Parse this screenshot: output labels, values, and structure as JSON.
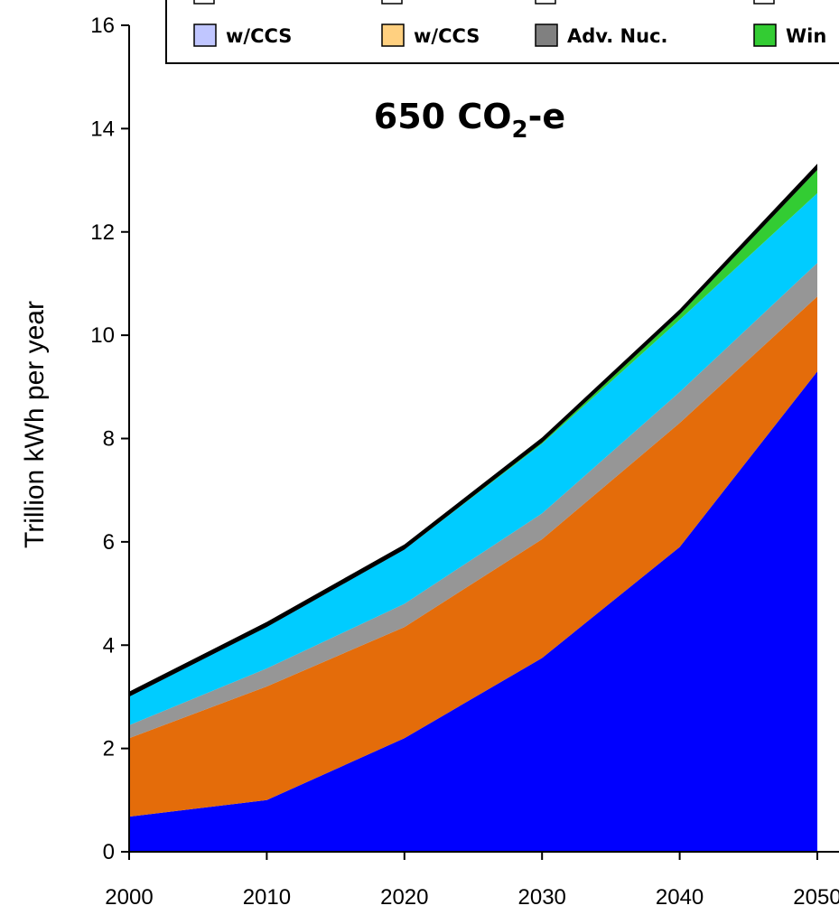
{
  "chart_data": {
    "type": "area",
    "stacked": true,
    "title": "650 CO",
    "title_sub": "2",
    "title_suffix": "-e",
    "ylabel": "Trillion kWh per year",
    "xlabel": "",
    "x": [
      2000,
      2010,
      2020,
      2030,
      2040,
      2050
    ],
    "xlim": [
      2000,
      2050
    ],
    "ylim": [
      0,
      16
    ],
    "yticks": [
      0,
      2,
      4,
      6,
      8,
      10,
      12,
      14,
      16
    ],
    "grid": false,
    "legend_position": "top",
    "series": [
      {
        "name": "",
        "color": "#0000ff",
        "values": [
          0.68,
          1.0,
          2.2,
          3.75,
          5.9,
          9.3
        ]
      },
      {
        "name": "",
        "color": "#e46c0a",
        "values": [
          1.52,
          2.2,
          2.15,
          2.3,
          2.4,
          1.45
        ]
      },
      {
        "name": "",
        "color": "#969696",
        "values": [
          0.25,
          0.35,
          0.45,
          0.5,
          0.6,
          0.65
        ]
      },
      {
        "name": "",
        "color": "#00ccff",
        "values": [
          0.55,
          0.8,
          1.05,
          1.35,
          1.4,
          1.35
        ]
      },
      {
        "name": "",
        "color": "#33cc33",
        "values": [
          0.0,
          0.0,
          0.0,
          0.02,
          0.1,
          0.45
        ]
      },
      {
        "name": "",
        "color": "#000000",
        "values": [
          0.1,
          0.1,
          0.1,
          0.1,
          0.1,
          0.12
        ]
      }
    ],
    "legend": [
      {
        "label": "w/CCS",
        "color": "#c0c6ff"
      },
      {
        "label": "w/CCS",
        "color": "#ffd080"
      },
      {
        "label": "Adv. Nuc.",
        "color": "#808080"
      },
      {
        "label": "Win",
        "color": "#33cc33"
      }
    ]
  }
}
